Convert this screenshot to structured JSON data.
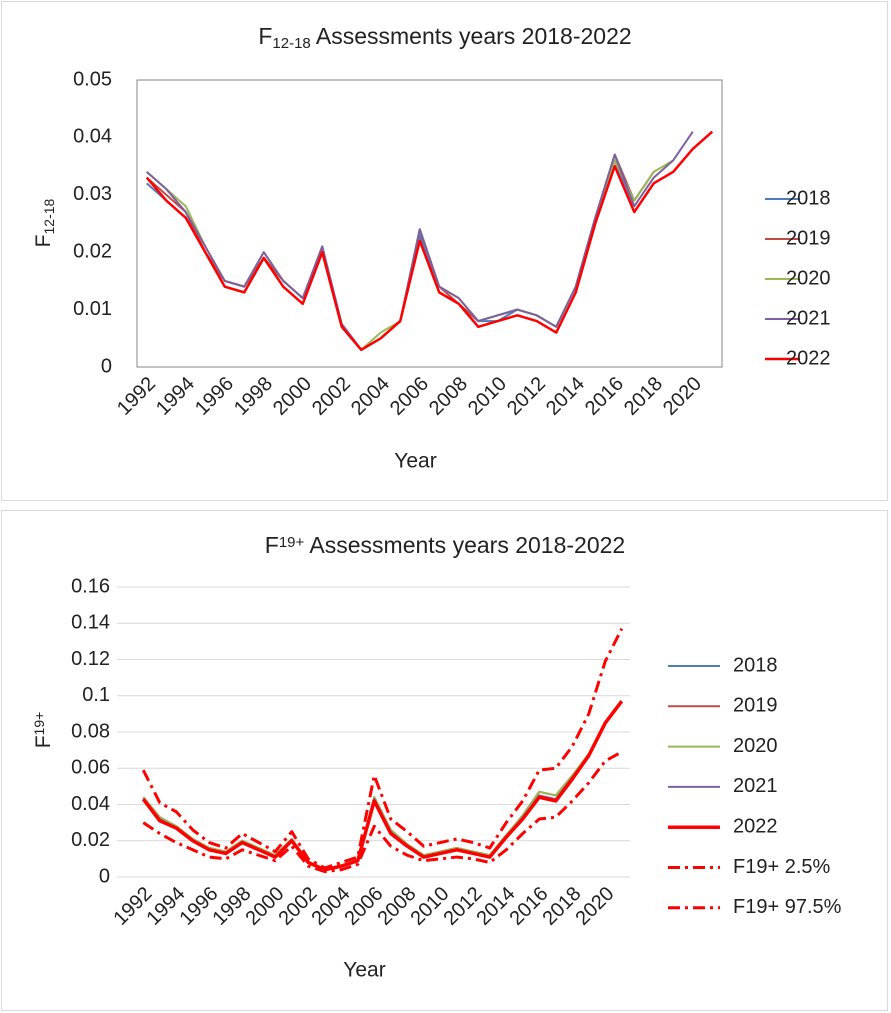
{
  "chart_data": [
    {
      "type": "line",
      "title": {
        "base": "F",
        "sub": "12-18",
        "text": "  Assessments years 2018-2022"
      },
      "x_label": "Year",
      "y_label": {
        "base": "F",
        "sub": "12-18"
      },
      "categories": [
        "1992",
        null,
        "1994",
        null,
        "1996",
        null,
        "1998",
        null,
        "2000",
        null,
        "2002",
        null,
        "2004",
        null,
        "2006",
        null,
        "2008",
        null,
        "2010",
        null,
        "2012",
        null,
        "2014",
        null,
        "2016",
        null,
        "2018",
        null,
        "2020",
        null
      ],
      "ylim": [
        0,
        0.05
      ],
      "yticks": [
        0,
        0.01,
        0.02,
        0.03,
        0.04,
        0.05
      ],
      "grid": false,
      "frame": true,
      "legend": "right",
      "series": [
        {
          "name": "2018",
          "color": "#4a7ebb",
          "width": 2,
          "values": [
            0.032,
            0.029,
            0.026,
            0.02,
            0.015,
            0.014,
            0.019,
            0.015,
            0.012,
            0.02,
            0.007,
            0.003,
            0.005,
            0.008,
            0.023,
            0.013,
            0.011,
            0.008,
            0.008,
            0.01,
            0.009,
            0.007,
            0.014,
            0.026,
            0.036,
            0.028,
            null,
            null,
            null,
            null
          ]
        },
        {
          "name": "2019",
          "color": "#be4b48",
          "width": 2,
          "values": [
            0.033,
            0.03,
            0.027,
            0.02,
            0.015,
            0.014,
            0.019,
            0.015,
            0.012,
            0.021,
            0.007,
            0.003,
            0.005,
            0.008,
            0.024,
            0.014,
            0.011,
            0.008,
            0.009,
            0.01,
            0.009,
            0.007,
            0.014,
            0.026,
            0.037,
            0.029,
            0.034,
            null,
            null,
            null
          ]
        },
        {
          "name": "2020",
          "color": "#98b954",
          "width": 2,
          "values": [
            0.034,
            0.031,
            0.028,
            0.021,
            0.015,
            0.014,
            0.02,
            0.015,
            0.012,
            0.021,
            0.0075,
            0.003,
            0.006,
            0.008,
            0.024,
            0.014,
            0.012,
            0.008,
            0.009,
            0.01,
            0.009,
            0.007,
            0.014,
            0.026,
            0.036,
            0.029,
            0.034,
            0.036,
            null,
            null
          ]
        },
        {
          "name": "2021",
          "color": "#7d60a0",
          "width": 2,
          "values": [
            0.034,
            0.031,
            0.027,
            0.021,
            0.015,
            0.014,
            0.02,
            0.015,
            0.012,
            0.021,
            0.0075,
            0.003,
            0.005,
            0.008,
            0.024,
            0.014,
            0.012,
            0.008,
            0.009,
            0.01,
            0.009,
            0.007,
            0.014,
            0.026,
            0.037,
            0.028,
            0.033,
            0.036,
            0.041,
            null
          ]
        },
        {
          "name": "2022",
          "color": "#ff0000",
          "width": 2.5,
          "values": [
            0.033,
            0.029,
            0.026,
            0.02,
            0.014,
            0.013,
            0.019,
            0.014,
            0.011,
            0.02,
            0.007,
            0.003,
            0.005,
            0.008,
            0.022,
            0.013,
            0.011,
            0.007,
            0.008,
            0.009,
            0.008,
            0.006,
            0.013,
            0.025,
            0.035,
            0.027,
            0.032,
            0.034,
            0.038,
            0.041
          ]
        }
      ]
    },
    {
      "type": "line",
      "title": {
        "base": "F",
        "sup": "19+",
        "text": " Assessments years 2018-2022"
      },
      "x_label": "Year",
      "y_label": {
        "base": "F",
        "sup": "19+"
      },
      "categories": [
        "1992",
        null,
        "1994",
        null,
        "1996",
        null,
        "1998",
        null,
        "2000",
        null,
        "2002",
        null,
        "2004",
        null,
        "2006",
        null,
        "2008",
        null,
        "2010",
        null,
        "2012",
        null,
        "2014",
        null,
        "2016",
        null,
        "2018",
        null,
        "2020",
        null
      ],
      "ylim": [
        0,
        0.16
      ],
      "yticks": [
        0,
        0.02,
        0.04,
        0.06,
        0.08,
        0.1,
        0.12,
        0.14,
        0.16
      ],
      "grid": true,
      "frame": false,
      "legend": "right",
      "series": [
        {
          "name": "2018",
          "color": "#4a7ebb",
          "width": 2,
          "values": [
            0.044,
            0.033,
            0.028,
            0.021,
            0.016,
            0.014,
            0.02,
            0.016,
            0.012,
            0.021,
            0.008,
            0.004,
            0.006,
            0.009,
            0.044,
            0.026,
            0.018,
            0.012,
            0.014,
            0.016,
            0.014,
            0.012,
            0.023,
            0.034,
            0.047,
            0.045,
            null,
            null,
            null,
            null
          ]
        },
        {
          "name": "2019",
          "color": "#be4b48",
          "width": 2,
          "values": [
            0.044,
            0.033,
            0.028,
            0.021,
            0.016,
            0.014,
            0.02,
            0.016,
            0.012,
            0.021,
            0.008,
            0.004,
            0.006,
            0.009,
            0.044,
            0.026,
            0.018,
            0.012,
            0.014,
            0.016,
            0.014,
            0.012,
            0.023,
            0.034,
            0.047,
            0.045,
            0.056,
            null,
            null,
            null
          ]
        },
        {
          "name": "2020",
          "color": "#98b954",
          "width": 2,
          "values": [
            0.044,
            0.033,
            0.028,
            0.021,
            0.016,
            0.014,
            0.02,
            0.016,
            0.012,
            0.021,
            0.008,
            0.004,
            0.006,
            0.009,
            0.044,
            0.026,
            0.018,
            0.012,
            0.014,
            0.016,
            0.014,
            0.012,
            0.023,
            0.034,
            0.047,
            0.045,
            0.056,
            0.068,
            null,
            null
          ]
        },
        {
          "name": "2021",
          "color": "#7d60a0",
          "width": 2,
          "values": [
            0.043,
            0.032,
            0.027,
            0.02,
            0.015,
            0.013,
            0.019,
            0.015,
            0.011,
            0.02,
            0.008,
            0.004,
            0.006,
            0.009,
            0.043,
            0.025,
            0.017,
            0.011,
            0.013,
            0.015,
            0.013,
            0.011,
            0.022,
            0.033,
            0.045,
            0.043,
            0.055,
            0.067,
            0.085,
            null
          ]
        },
        {
          "name": "2022",
          "color": "#ff0000",
          "width": 3.5,
          "values": [
            0.043,
            0.031,
            0.027,
            0.02,
            0.015,
            0.013,
            0.019,
            0.015,
            0.011,
            0.02,
            0.008,
            0.004,
            0.006,
            0.009,
            0.042,
            0.024,
            0.017,
            0.011,
            0.013,
            0.015,
            0.013,
            0.011,
            0.022,
            0.032,
            0.044,
            0.042,
            0.054,
            0.067,
            0.085,
            0.097
          ]
        },
        {
          "name": "F19+ 2.5%",
          "color": "#ff0000",
          "width": 3,
          "dash": "12,5,3,5",
          "values": [
            0.03,
            0.024,
            0.019,
            0.015,
            0.011,
            0.01,
            0.015,
            0.012,
            0.009,
            0.017,
            0.006,
            0.003,
            0.004,
            0.007,
            0.028,
            0.017,
            0.012,
            0.009,
            0.01,
            0.011,
            0.01,
            0.008,
            0.015,
            0.024,
            0.032,
            0.033,
            0.042,
            0.052,
            0.064,
            0.069
          ]
        },
        {
          "name": "F19+ 97.5%",
          "color": "#ff0000",
          "width": 3,
          "dash": "12,5,3,5",
          "values": [
            0.059,
            0.041,
            0.036,
            0.026,
            0.019,
            0.016,
            0.024,
            0.019,
            0.014,
            0.025,
            0.01,
            0.005,
            0.008,
            0.011,
            0.056,
            0.032,
            0.025,
            0.017,
            0.019,
            0.021,
            0.019,
            0.016,
            0.03,
            0.042,
            0.059,
            0.06,
            0.072,
            0.09,
            0.119,
            0.137
          ]
        }
      ]
    }
  ]
}
